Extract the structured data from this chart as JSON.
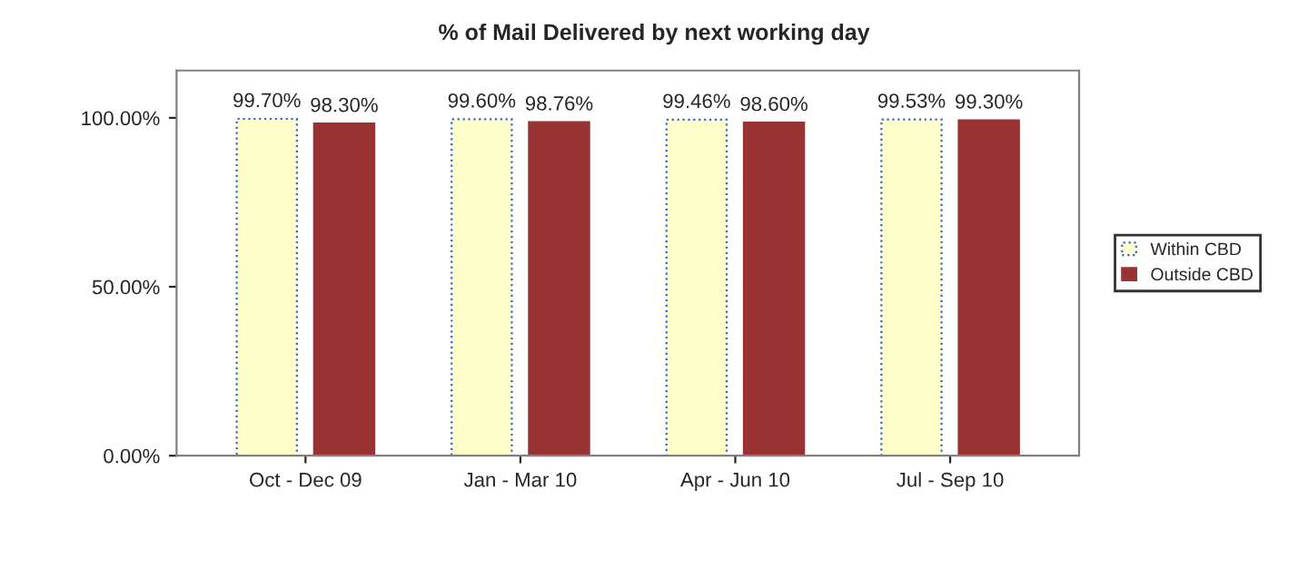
{
  "chart_data": {
    "type": "bar",
    "title": "% of Mail Delivered by next working day",
    "categories": [
      "Oct - Dec 09",
      "Jan - Mar 10",
      "Apr - Jun 10",
      "Jul - Sep 10"
    ],
    "series": [
      {
        "name": "Within CBD",
        "color": "#ffffcc",
        "values": [
          99.7,
          99.6,
          99.46,
          99.53
        ],
        "value_labels": [
          "99.70%",
          "99.60%",
          "99.46%",
          "99.53%"
        ]
      },
      {
        "name": "Outside CBD",
        "color": "#993333",
        "values": [
          98.3,
          98.76,
          98.6,
          99.3
        ],
        "value_labels": [
          "98.30%",
          "98.76%",
          "98.60%",
          "99.30%"
        ]
      }
    ],
    "ylim": [
      0,
      114
    ],
    "yticks": [
      {
        "value": 0,
        "label": "0.00%"
      },
      {
        "value": 50,
        "label": "50.00%"
      },
      {
        "value": 100,
        "label": "100.00%"
      }
    ],
    "grid": false,
    "legend": "right"
  }
}
